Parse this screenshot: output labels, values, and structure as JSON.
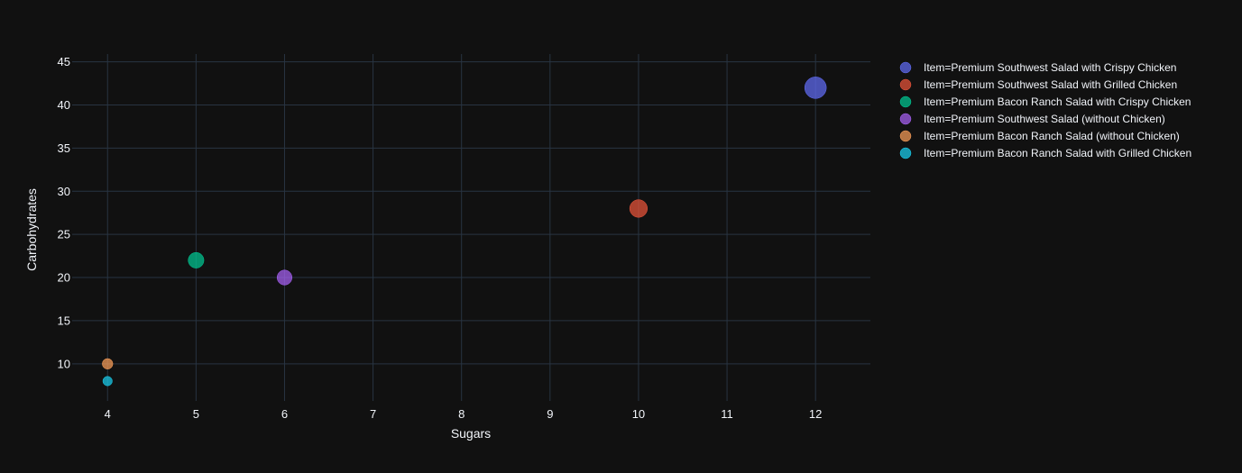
{
  "chart_data": {
    "type": "scatter",
    "title": "",
    "xlabel": "Sugars",
    "ylabel": "Carbohydrates",
    "xlim": [
      3.6,
      12.62
    ],
    "ylim": [
      5.7,
      45.9
    ],
    "x_ticks": [
      4,
      5,
      6,
      7,
      8,
      9,
      10,
      11,
      12
    ],
    "y_ticks": [
      10,
      15,
      20,
      25,
      30,
      35,
      40,
      45
    ],
    "grid": true,
    "legend_position": "right",
    "background": "#111111",
    "series": [
      {
        "name": "Item=Premium Southwest Salad with Crispy Chicken",
        "color": "#636efa",
        "x": [
          12
        ],
        "y": [
          42
        ],
        "size": [
          42
        ]
      },
      {
        "name": "Item=Premium Southwest Salad with Grilled Chicken",
        "color": "#EF553B",
        "x": [
          10
        ],
        "y": [
          28
        ],
        "size": [
          28
        ]
      },
      {
        "name": "Item=Premium Bacon Ranch Salad with Crispy Chicken",
        "color": "#00cc96",
        "x": [
          5
        ],
        "y": [
          22
        ],
        "size": [
          22
        ]
      },
      {
        "name": "Item=Premium Southwest Salad (without Chicken)",
        "color": "#ab63fa",
        "x": [
          6
        ],
        "y": [
          20
        ],
        "size": [
          20
        ]
      },
      {
        "name": "Item=Premium Bacon Ranch Salad (without Chicken)",
        "color": "#FFA15A",
        "x": [
          4
        ],
        "y": [
          10
        ],
        "size": [
          10
        ]
      },
      {
        "name": "Item=Premium Bacon Ranch Salad with Grilled Chicken",
        "color": "#19d3f3",
        "x": [
          4
        ],
        "y": [
          8
        ],
        "size": [
          8
        ]
      }
    ]
  }
}
